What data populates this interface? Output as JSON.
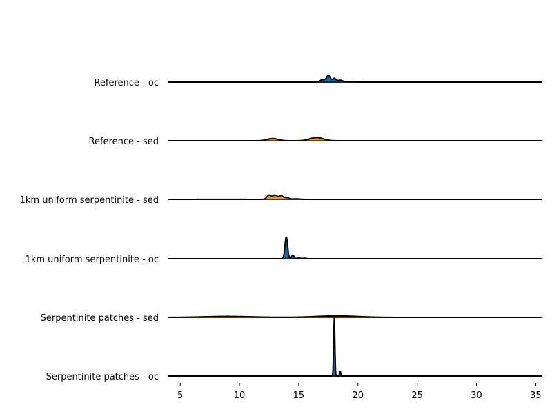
{
  "chart_data": {
    "type": "ridgeline",
    "title": "",
    "xlabel": "",
    "ylabel": "",
    "xlim": [
      4,
      35.5
    ],
    "x_ticks": [
      "5",
      "10",
      "15",
      "20",
      "25",
      "30",
      "35"
    ],
    "x_tick_values": [
      5,
      10,
      15,
      20,
      25,
      30,
      35
    ],
    "grid": false,
    "colors": {
      "oc": "#0072b2",
      "sed": "#e69f00",
      "outline": "#000000",
      "baseline_oc": "#0b2a4a",
      "baseline_sed": "#6b3500"
    },
    "series": [
      {
        "name": "Reference - oc",
        "group": "oc",
        "peaks": [
          {
            "x": 17.0,
            "h": 0.1,
            "w": 0.18
          },
          {
            "x": 17.5,
            "h": 0.27,
            "w": 0.16
          },
          {
            "x": 18.0,
            "h": 0.15,
            "w": 0.15
          },
          {
            "x": 18.5,
            "h": 0.07,
            "w": 0.2
          },
          {
            "x": 19.3,
            "h": 0.02,
            "w": 0.5
          }
        ]
      },
      {
        "name": "Reference - sed",
        "group": "sed",
        "peaks": [
          {
            "x": 12.8,
            "h": 0.09,
            "w": 0.45
          },
          {
            "x": 16.5,
            "h": 0.13,
            "w": 0.55
          }
        ]
      },
      {
        "name": "1km uniform serpentinite - sed",
        "group": "sed",
        "peaks": [
          {
            "x": 12.5,
            "h": 0.17,
            "w": 0.18
          },
          {
            "x": 13.0,
            "h": 0.17,
            "w": 0.18
          },
          {
            "x": 13.5,
            "h": 0.15,
            "w": 0.18
          },
          {
            "x": 14.0,
            "h": 0.07,
            "w": 0.2
          },
          {
            "x": 14.8,
            "h": 0.02,
            "w": 0.3
          },
          {
            "x": 8.5,
            "h": 0.005,
            "w": 1.5
          }
        ]
      },
      {
        "name": "1km uniform serpentinite - oc",
        "group": "oc",
        "peaks": [
          {
            "x": 13.95,
            "h": 0.88,
            "w": 0.11
          },
          {
            "x": 14.5,
            "h": 0.15,
            "w": 0.1
          },
          {
            "x": 15.0,
            "h": 0.03,
            "w": 0.15
          },
          {
            "x": 15.5,
            "h": 0.02,
            "w": 0.15
          }
        ]
      },
      {
        "name": "Serpentinite patches - sed",
        "group": "sed",
        "peaks": [
          {
            "x": 9.0,
            "h": 0.04,
            "w": 2.0
          },
          {
            "x": 18.2,
            "h": 0.06,
            "w": 1.8
          }
        ]
      },
      {
        "name": "Serpentinite patches - oc",
        "group": "oc",
        "peaks": [
          {
            "x": 18.0,
            "h": 2.35,
            "w": 0.05
          },
          {
            "x": 18.5,
            "h": 0.2,
            "w": 0.05
          }
        ]
      }
    ]
  }
}
